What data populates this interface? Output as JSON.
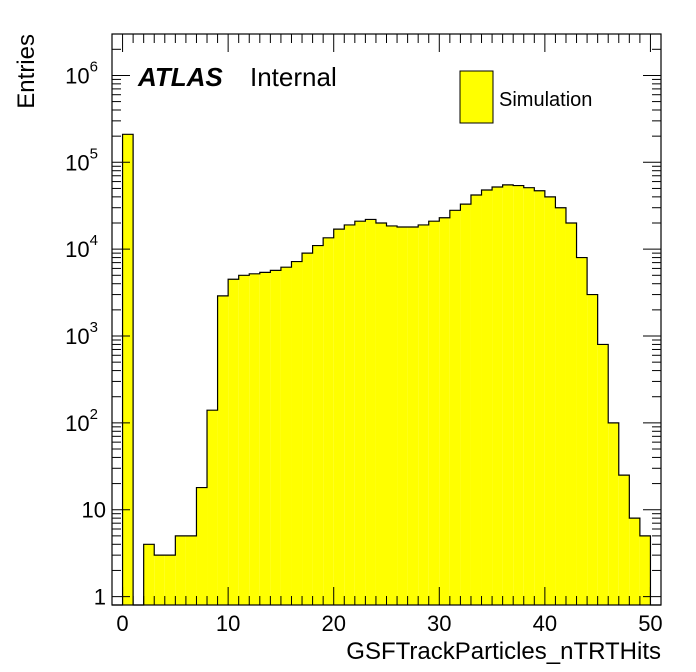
{
  "chart_data": {
    "type": "bar",
    "xlabel": "GSFTrackParticles_nTRTHits",
    "ylabel": "Entries",
    "xlim": [
      -1,
      51
    ],
    "ylim": [
      0.8,
      3000000
    ],
    "y_scale": "log",
    "bin_width": 1,
    "x_ticks": [
      0,
      10,
      20,
      30,
      40,
      50
    ],
    "y_ticks": [
      {
        "value": 1,
        "base": "1",
        "exp": ""
      },
      {
        "value": 10,
        "base": "10",
        "exp": ""
      },
      {
        "value": 100,
        "base": "10",
        "exp": "2"
      },
      {
        "value": 1000,
        "base": "10",
        "exp": "3"
      },
      {
        "value": 10000,
        "base": "10",
        "exp": "4"
      },
      {
        "value": 100000,
        "base": "10",
        "exp": "5"
      },
      {
        "value": 1000000,
        "base": "10",
        "exp": "6"
      }
    ],
    "bins_x": [
      -1,
      0,
      1,
      2,
      3,
      4,
      5,
      6,
      7,
      8,
      9,
      10,
      11,
      12,
      13,
      14,
      15,
      16,
      17,
      18,
      19,
      20,
      21,
      22,
      23,
      24,
      25,
      26,
      27,
      28,
      29,
      30,
      31,
      32,
      33,
      34,
      35,
      36,
      37,
      38,
      39,
      40,
      41,
      42,
      43,
      44,
      45,
      46,
      47,
      48,
      49,
      50
    ],
    "values": [
      0,
      210000,
      0,
      4,
      3,
      3,
      5,
      5,
      18,
      140,
      2900,
      4500,
      5000,
      5200,
      5400,
      5700,
      6200,
      7200,
      9000,
      11000,
      13500,
      17000,
      19000,
      21000,
      22000,
      20000,
      18500,
      18000,
      18000,
      19000,
      21000,
      23000,
      28000,
      33000,
      42000,
      48000,
      52000,
      55000,
      54000,
      51000,
      47000,
      40000,
      30000,
      20000,
      8000,
      3000,
      800,
      100,
      25,
      8,
      5,
      0
    ],
    "fill_color": "#ffff00",
    "line_color": "#000000",
    "annotation_atlas": "ATLAS",
    "annotation_internal": "Internal",
    "legend": {
      "label": "Simulation",
      "position": "top-right"
    }
  }
}
